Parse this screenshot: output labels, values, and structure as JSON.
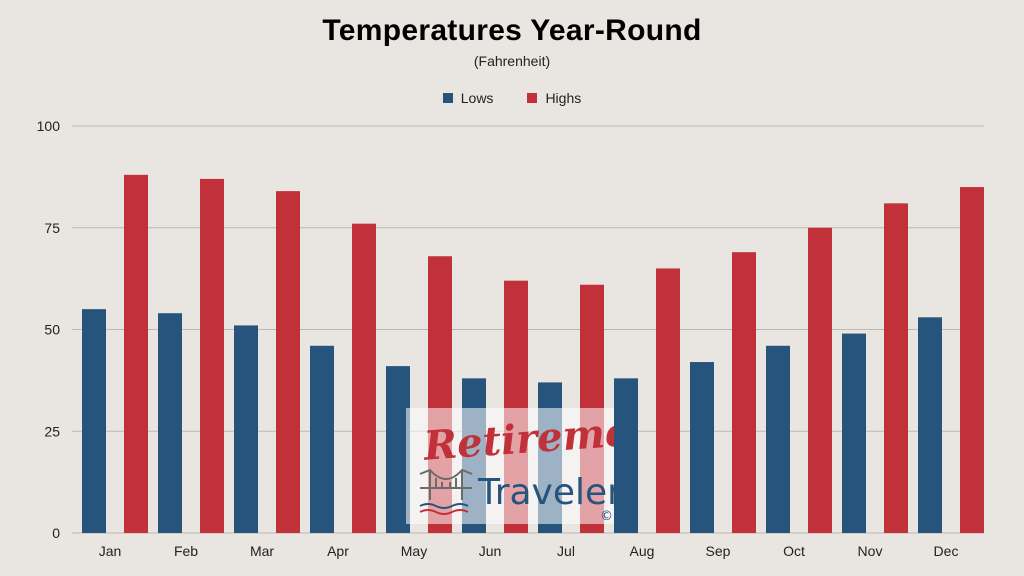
{
  "chart_data": {
    "type": "bar",
    "title": "Temperatures Year-Round",
    "subtitle": "(Fahrenheit)",
    "xlabel": "",
    "ylabel": "",
    "categories": [
      "Jan",
      "Feb",
      "Mar",
      "Apr",
      "May",
      "Jun",
      "Jul",
      "Aug",
      "Sep",
      "Oct",
      "Nov",
      "Dec"
    ],
    "series": [
      {
        "name": "Lows",
        "color": "#26547c",
        "values": [
          55,
          54,
          51,
          46,
          41,
          38,
          37,
          38,
          42,
          46,
          49,
          53
        ]
      },
      {
        "name": "Highs",
        "color": "#c1313a",
        "values": [
          88,
          87,
          84,
          76,
          68,
          62,
          61,
          65,
          69,
          75,
          81,
          85
        ]
      }
    ],
    "ylim": [
      0,
      100
    ],
    "yticks": [
      0,
      25,
      50,
      75,
      100
    ],
    "grid": true,
    "legend_position": "top-center"
  },
  "watermark": {
    "line1": "Retirement",
    "line2": "Travelers",
    "mark": "©",
    "icon": "bridge-icon",
    "line1_color": "#c1313a",
    "line2_color": "#26547c"
  }
}
